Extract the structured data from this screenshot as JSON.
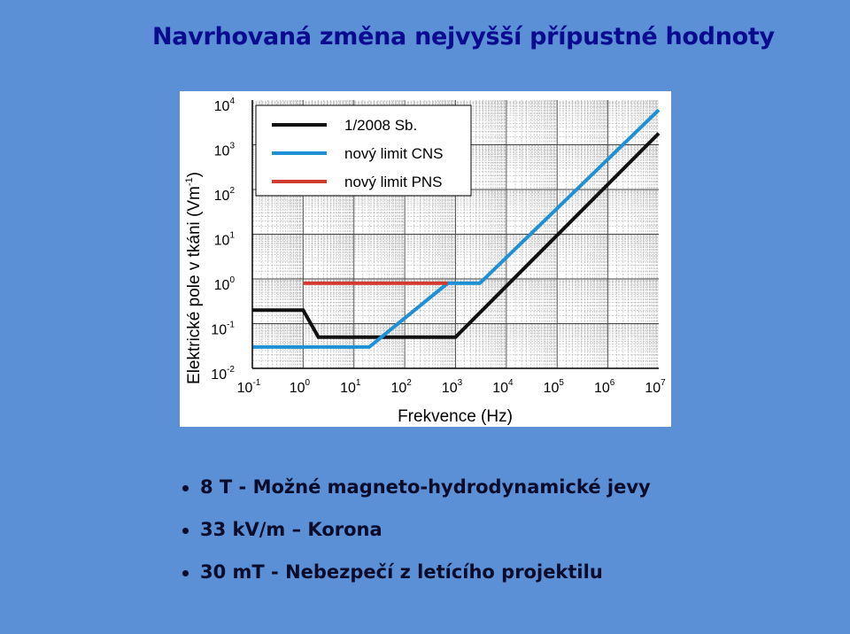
{
  "slide": {
    "title": "Navrhovaná změna nejvyšší přípustné hodnoty",
    "bullets": [
      "8 T - Možné magneto-hydrodynamické jevy",
      "33 kV/m – Korona",
      "30 mT - Nebezpečí z letícího projektilu"
    ]
  },
  "chart_data": {
    "type": "line",
    "x_scale": "log",
    "y_scale": "log",
    "xlabel": "Frekvence (Hz)",
    "ylabel": "Elektrické pole v tkáni (Vm",
    "ylabel_sup": "-1",
    "ylabel_close": ")",
    "xlim_exp": [
      -1,
      7
    ],
    "ylim_exp": [
      -2,
      4
    ],
    "grid": true,
    "legend_position": "top-left",
    "series": [
      {
        "name": "1/2008 Sb.",
        "color": "#111111",
        "x": [
          0.1,
          1,
          2,
          1000,
          10000000
        ],
        "y": [
          0.2,
          0.2,
          0.05,
          0.05,
          1800
        ]
      },
      {
        "name": "nový limit CNS",
        "color": "#1e90d6",
        "x": [
          0.1,
          20,
          700,
          3000,
          10000000
        ],
        "y": [
          0.03,
          0.03,
          0.8,
          0.8,
          6000
        ]
      },
      {
        "name": "nový limit PNS",
        "color": "#d43b30",
        "x": [
          1,
          700
        ],
        "y": [
          0.8,
          0.8
        ]
      }
    ]
  }
}
